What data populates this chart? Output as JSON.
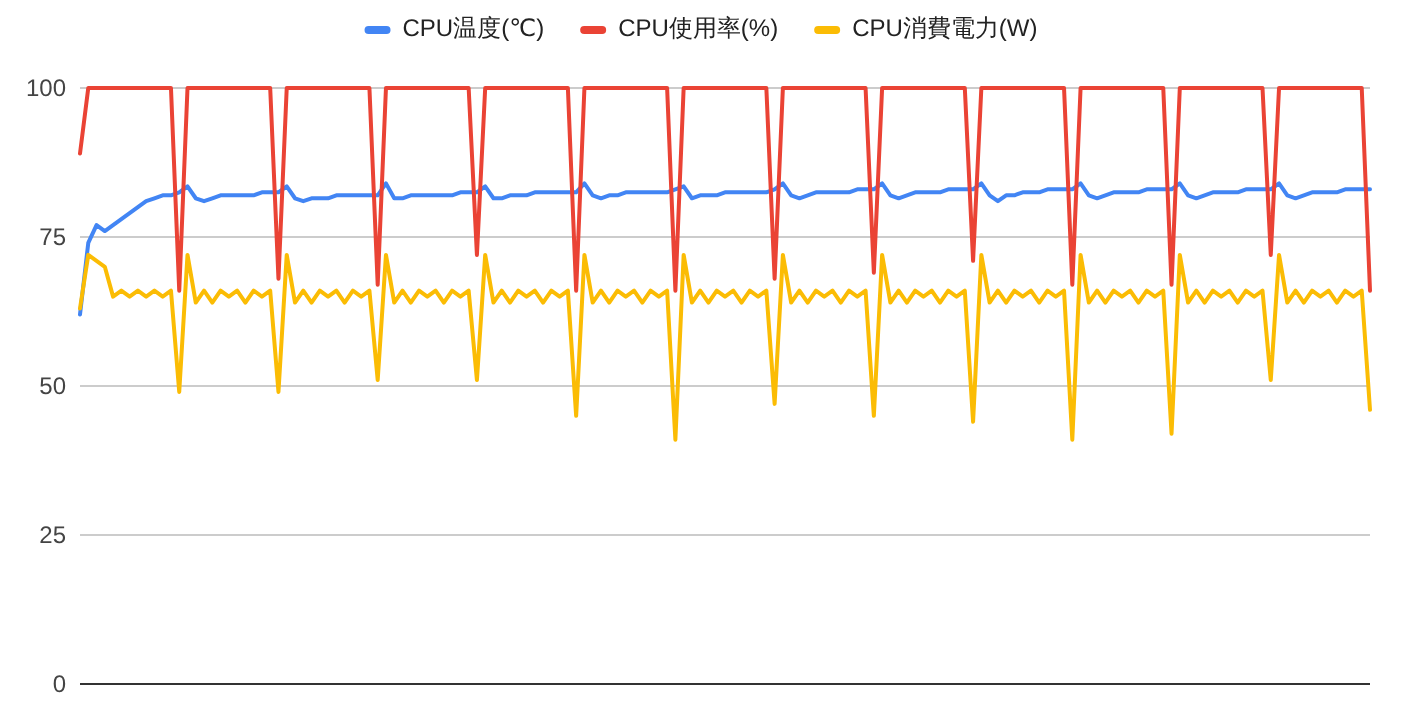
{
  "chart_data": {
    "type": "line",
    "categories": [
      null,
      null,
      null,
      null,
      null,
      null,
      null,
      null,
      null,
      null,
      null,
      null,
      null,
      null,
      null,
      null,
      null,
      null,
      null,
      null,
      null,
      null,
      null,
      null,
      null,
      null,
      null,
      null,
      null,
      null,
      null,
      null,
      null,
      null,
      null,
      null,
      null,
      null,
      null,
      null,
      null,
      null,
      null,
      null,
      null,
      null,
      null,
      null,
      null,
      null,
      null,
      null,
      null,
      null,
      null,
      null,
      null,
      null,
      null,
      null,
      null,
      null,
      null,
      null,
      null,
      null,
      null,
      null,
      null,
      null,
      null,
      null,
      null,
      null,
      null,
      null,
      null,
      null,
      null,
      null,
      null,
      null,
      null,
      null,
      null,
      null,
      null,
      null,
      null,
      null,
      null,
      null,
      null,
      null,
      null,
      null,
      null,
      null,
      null,
      null,
      null,
      null,
      null,
      null,
      null,
      null,
      null,
      null,
      null,
      null,
      null,
      null,
      null,
      null,
      null,
      null,
      null,
      null,
      null,
      null,
      null,
      null,
      null,
      null,
      null,
      null,
      null,
      null,
      null,
      null,
      null,
      null,
      null,
      null,
      null,
      null,
      null,
      null,
      null,
      null,
      null,
      null,
      null,
      null,
      null,
      null,
      null,
      null,
      null,
      null,
      null,
      null,
      null,
      null,
      null,
      null,
      null
    ],
    "series": [
      {
        "name": "CPU温度(℃)",
        "color": "#4285f4",
        "values": [
          62,
          74,
          77,
          76,
          77,
          78,
          79,
          80,
          81,
          81.5,
          82,
          82,
          82.5,
          83.5,
          81.5,
          81,
          81.5,
          82,
          82,
          82,
          82,
          82,
          82.5,
          82.5,
          82.5,
          83.5,
          81.5,
          81,
          81.5,
          81.5,
          81.5,
          82,
          82,
          82,
          82,
          82,
          82,
          84,
          81.5,
          81.5,
          82,
          82,
          82,
          82,
          82,
          82,
          82.5,
          82.5,
          82.5,
          83.5,
          81.5,
          81.5,
          82,
          82,
          82,
          82.5,
          82.5,
          82.5,
          82.5,
          82.5,
          82.5,
          84,
          82,
          81.5,
          82,
          82,
          82.5,
          82.5,
          82.5,
          82.5,
          82.5,
          82.5,
          83,
          83.5,
          81.5,
          82,
          82,
          82,
          82.5,
          82.5,
          82.5,
          82.5,
          82.5,
          82.5,
          83,
          84,
          82,
          81.5,
          82,
          82.5,
          82.5,
          82.5,
          82.5,
          82.5,
          83,
          83,
          83,
          84,
          82,
          81.5,
          82,
          82.5,
          82.5,
          82.5,
          82.5,
          83,
          83,
          83,
          83,
          84,
          82,
          81,
          82,
          82,
          82.5,
          82.5,
          82.5,
          83,
          83,
          83,
          83,
          84,
          82,
          81.5,
          82,
          82.5,
          82.5,
          82.5,
          82.5,
          83,
          83,
          83,
          83,
          84,
          82,
          81.5,
          82,
          82.5,
          82.5,
          82.5,
          82.5,
          83,
          83,
          83,
          83,
          84,
          82,
          81.5,
          82,
          82.5,
          82.5,
          82.5,
          82.5,
          83,
          83,
          83,
          83
        ]
      },
      {
        "name": "CPU使用率(%)",
        "color": "#ea4335",
        "values": [
          89,
          100,
          100,
          100,
          100,
          100,
          100,
          100,
          100,
          100,
          100,
          100,
          66,
          100,
          100,
          100,
          100,
          100,
          100,
          100,
          100,
          100,
          100,
          100,
          68,
          100,
          100,
          100,
          100,
          100,
          100,
          100,
          100,
          100,
          100,
          100,
          67,
          100,
          100,
          100,
          100,
          100,
          100,
          100,
          100,
          100,
          100,
          100,
          72,
          100,
          100,
          100,
          100,
          100,
          100,
          100,
          100,
          100,
          100,
          100,
          66,
          100,
          100,
          100,
          100,
          100,
          100,
          100,
          100,
          100,
          100,
          100,
          66,
          100,
          100,
          100,
          100,
          100,
          100,
          100,
          100,
          100,
          100,
          100,
          68,
          100,
          100,
          100,
          100,
          100,
          100,
          100,
          100,
          100,
          100,
          100,
          69,
          100,
          100,
          100,
          100,
          100,
          100,
          100,
          100,
          100,
          100,
          100,
          71,
          100,
          100,
          100,
          100,
          100,
          100,
          100,
          100,
          100,
          100,
          100,
          67,
          100,
          100,
          100,
          100,
          100,
          100,
          100,
          100,
          100,
          100,
          100,
          67,
          100,
          100,
          100,
          100,
          100,
          100,
          100,
          100,
          100,
          100,
          100,
          72,
          100,
          100,
          100,
          100,
          100,
          100,
          100,
          100,
          100,
          100,
          100,
          66
        ]
      },
      {
        "name": "CPU消費電力(W)",
        "color": "#fbbc04",
        "values": [
          63,
          72,
          71,
          70,
          65,
          66,
          65,
          66,
          65,
          66,
          65,
          66,
          49,
          72,
          64,
          66,
          64,
          66,
          65,
          66,
          64,
          66,
          65,
          66,
          49,
          72,
          64,
          66,
          64,
          66,
          65,
          66,
          64,
          66,
          65,
          66,
          51,
          72,
          64,
          66,
          64,
          66,
          65,
          66,
          64,
          66,
          65,
          66,
          51,
          72,
          64,
          66,
          64,
          66,
          65,
          66,
          64,
          66,
          65,
          66,
          45,
          72,
          64,
          66,
          64,
          66,
          65,
          66,
          64,
          66,
          65,
          66,
          41,
          72,
          64,
          66,
          64,
          66,
          65,
          66,
          64,
          66,
          65,
          66,
          47,
          72,
          64,
          66,
          64,
          66,
          65,
          66,
          64,
          66,
          65,
          66,
          45,
          72,
          64,
          66,
          64,
          66,
          65,
          66,
          64,
          66,
          65,
          66,
          44,
          72,
          64,
          66,
          64,
          66,
          65,
          66,
          64,
          66,
          65,
          66,
          41,
          72,
          64,
          66,
          64,
          66,
          65,
          66,
          64,
          66,
          65,
          66,
          42,
          72,
          64,
          66,
          64,
          66,
          65,
          66,
          64,
          66,
          65,
          66,
          51,
          72,
          64,
          66,
          64,
          66,
          65,
          66,
          64,
          66,
          65,
          66,
          46
        ]
      }
    ],
    "ylim": [
      0,
      100
    ],
    "yticks": [
      0,
      25,
      50,
      75,
      100
    ],
    "grid": "y",
    "legend": "top",
    "marker": "none",
    "line_style": "solid",
    "tick_labels": "y"
  }
}
